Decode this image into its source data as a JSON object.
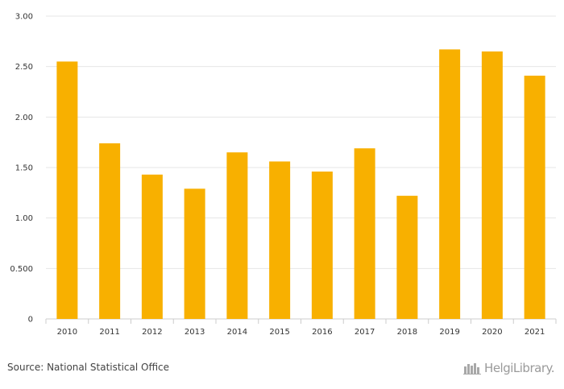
{
  "chart_data": {
    "type": "bar",
    "categories": [
      "2010",
      "2011",
      "2012",
      "2013",
      "2014",
      "2015",
      "2016",
      "2017",
      "2018",
      "2019",
      "2020",
      "2021"
    ],
    "values": [
      2.55,
      1.74,
      1.43,
      1.29,
      1.65,
      1.56,
      1.46,
      1.69,
      1.22,
      2.67,
      2.65,
      2.41
    ],
    "title": "",
    "xlabel": "",
    "ylabel": "",
    "ylim": [
      0,
      3.0
    ],
    "yticks": [
      0,
      0.5,
      1.0,
      1.5,
      2.0,
      2.5,
      3.0
    ],
    "ytick_labels": [
      "0",
      "0.500",
      "1.00",
      "1.50",
      "2.00",
      "2.50",
      "3.00"
    ],
    "grid": true,
    "bar_color": "#F8B000"
  },
  "footer": {
    "source": "Source: National Statistical Office",
    "logo_text": "HelgiLibrary."
  },
  "colors": {
    "grid": "#e6e6e6",
    "axis": "#cccccc",
    "text": "#333333"
  }
}
